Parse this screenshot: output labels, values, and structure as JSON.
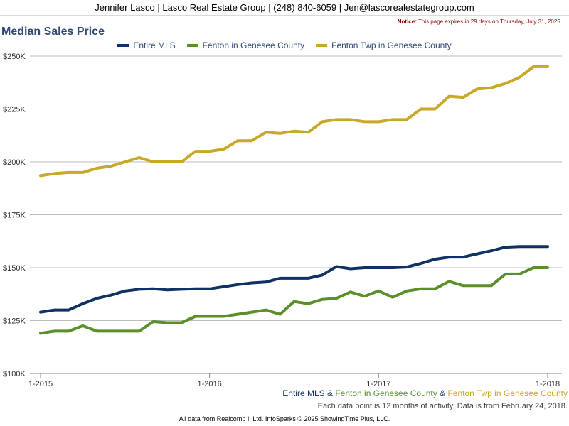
{
  "header": {
    "contact": "Jennifer Lasco | Lasco Real Estate Group | (248) 840-6059 | Jen@lascorealestategroup.com",
    "notice_label": "Notice:",
    "notice_text": " This page expires in 29 days on Thursday, July 31, 2025."
  },
  "footer": {
    "series_text": [
      {
        "text": "Entire MLS",
        "color": "#0f3264"
      },
      {
        "text": " & ",
        "color": "#2e4a78"
      },
      {
        "text": "Fenton in Genesee County",
        "color": "#5a8f29"
      },
      {
        "text": " & ",
        "color": "#2e4a78"
      },
      {
        "text": "Fenton Twp in Genesee County",
        "color": "#c8a828"
      }
    ],
    "note": "Each data point is 12 months of activity. Data is from February 24, 2018.",
    "source": "All data from Realcomp II Ltd. InfoSparks © 2025 ShowingTime Plus, LLC."
  },
  "chart_data": {
    "type": "line",
    "title": "Median Sales Price",
    "xlabel": "",
    "ylabel": "",
    "ylim": [
      100000,
      250000
    ],
    "y_ticks": [
      100000,
      125000,
      150000,
      175000,
      200000,
      225000,
      250000
    ],
    "y_tick_labels": [
      "$100K",
      "$125K",
      "$150K",
      "$175K",
      "$200K",
      "$225K",
      "$250K"
    ],
    "x_tick_labels": [
      "1-2015",
      "1-2016",
      "1-2017",
      "1-2018"
    ],
    "x_tick_index": [
      0,
      12,
      24,
      36
    ],
    "grid": true,
    "legend": "top",
    "series": [
      {
        "name": "Entire MLS",
        "color": "#0f3264",
        "values": [
          129000,
          130000,
          130000,
          133000,
          135500,
          137000,
          139000,
          139800,
          140000,
          139500,
          139800,
          140000,
          140000,
          141000,
          142000,
          142800,
          143200,
          145000,
          145000,
          145000,
          146500,
          150500,
          149500,
          150000,
          150000,
          150000,
          150300,
          152000,
          154000,
          155000,
          155000,
          156500,
          158000,
          159700,
          160000,
          160000,
          160000
        ]
      },
      {
        "name": "Fenton in Genesee County",
        "color": "#5a8f29",
        "values": [
          119000,
          120000,
          120000,
          122500,
          120000,
          120000,
          120000,
          120000,
          124500,
          124000,
          124000,
          127000,
          127000,
          127000,
          128000,
          129000,
          130000,
          128000,
          134000,
          133000,
          135000,
          135500,
          138500,
          136500,
          139000,
          136000,
          139000,
          140000,
          140000,
          143500,
          141500,
          141500,
          141500,
          147000,
          147000,
          150000,
          150000
        ]
      },
      {
        "name": "Fenton Twp in Genesee County",
        "color": "#c8a828",
        "values": [
          193500,
          194500,
          195000,
          195000,
          197000,
          198000,
          200000,
          202000,
          200000,
          200000,
          200000,
          205000,
          205000,
          206000,
          210000,
          210000,
          214000,
          213500,
          214500,
          214000,
          219000,
          220000,
          220000,
          219000,
          219000,
          220000,
          220000,
          225000,
          225000,
          231000,
          230500,
          234500,
          235000,
          237000,
          240000,
          245000,
          245000
        ]
      }
    ]
  }
}
